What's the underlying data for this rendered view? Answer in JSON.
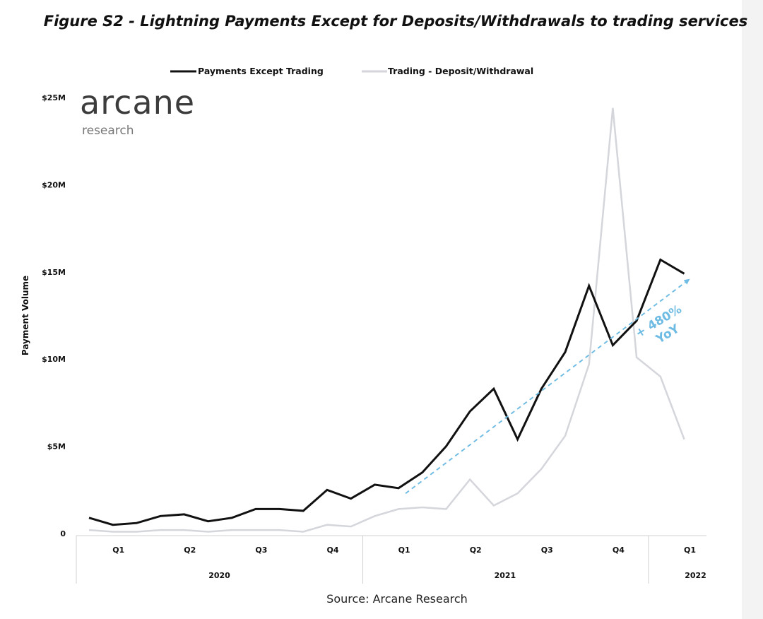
{
  "figure": {
    "title": "Figure S2 - Lightning Payments Except for Deposits/Withdrawals to trading services",
    "source": "Source: Arcane Research"
  },
  "logo": {
    "name": "arcane",
    "tagline": "research"
  },
  "chart_data": {
    "type": "line",
    "title": "Figure S2 - Lightning Payments Except for Deposits/Withdrawals to trading services",
    "xlabel": "",
    "ylabel": "Payment Volume",
    "ylim": [
      0,
      25
    ],
    "y_unit": "$M",
    "y_ticks": [
      {
        "value": 0,
        "label": "0"
      },
      {
        "value": 5,
        "label": "$5M"
      },
      {
        "value": 10,
        "label": "$10M"
      },
      {
        "value": 15,
        "label": "$15M"
      },
      {
        "value": 20,
        "label": "$20M"
      },
      {
        "value": 25,
        "label": "$25M"
      }
    ],
    "x": [
      "2020-01",
      "2020-02",
      "2020-03",
      "2020-04",
      "2020-05",
      "2020-06",
      "2020-07",
      "2020-08",
      "2020-09",
      "2020-10",
      "2020-11",
      "2020-12",
      "2021-01",
      "2021-02",
      "2021-03",
      "2021-04",
      "2021-05",
      "2021-06",
      "2021-07",
      "2021-08",
      "2021-09",
      "2021-10",
      "2021-11",
      "2021-12",
      "2022-01",
      "2022-02",
      "2022-03"
    ],
    "quarter_labels": [
      {
        "label": "Q1",
        "month": "2020-02"
      },
      {
        "label": "Q2",
        "month": "2020-05"
      },
      {
        "label": "Q3",
        "month": "2020-08"
      },
      {
        "label": "Q4",
        "month": "2020-11"
      },
      {
        "label": "Q1",
        "month": "2021-02"
      },
      {
        "label": "Q2",
        "month": "2021-05"
      },
      {
        "label": "Q3",
        "month": "2021-08"
      },
      {
        "label": "Q4",
        "month": "2021-11"
      },
      {
        "label": "Q1",
        "month": "2022-02"
      }
    ],
    "year_labels": [
      {
        "label": "2020",
        "center_month": "2020-06"
      },
      {
        "label": "2021",
        "center_month": "2021-06"
      },
      {
        "label": "2022",
        "center_month": "2022-02"
      }
    ],
    "series": [
      {
        "name": "Payments Except Trading",
        "color": "#111111",
        "values": [
          0.9,
          0.5,
          0.6,
          1.0,
          1.1,
          0.7,
          0.9,
          1.4,
          1.4,
          1.3,
          2.5,
          2.0,
          2.8,
          2.6,
          3.5,
          5.0,
          7.0,
          8.3,
          5.4,
          8.3,
          10.4,
          14.2,
          10.8,
          12.2,
          15.7,
          14.9,
          null
        ]
      },
      {
        "name": "Trading - Deposit/Withdrawal",
        "color": "#d4d6db",
        "values": [
          0.2,
          0.1,
          0.1,
          0.2,
          0.2,
          0.1,
          0.2,
          0.2,
          0.2,
          0.1,
          0.5,
          0.4,
          1.0,
          1.4,
          1.5,
          1.4,
          3.1,
          1.6,
          2.3,
          3.7,
          5.6,
          9.7,
          24.4,
          10.1,
          9.0,
          5.4,
          null
        ]
      }
    ],
    "trend_annotation": {
      "text_line1": "+ 480%",
      "text_line2": "YoY",
      "start": {
        "month": "2021-02",
        "value": 2.3
      },
      "end": {
        "month": "2022-02",
        "value": 14.6
      },
      "color": "#6ebbe3"
    },
    "legend_position": "top-center",
    "grid": false
  }
}
